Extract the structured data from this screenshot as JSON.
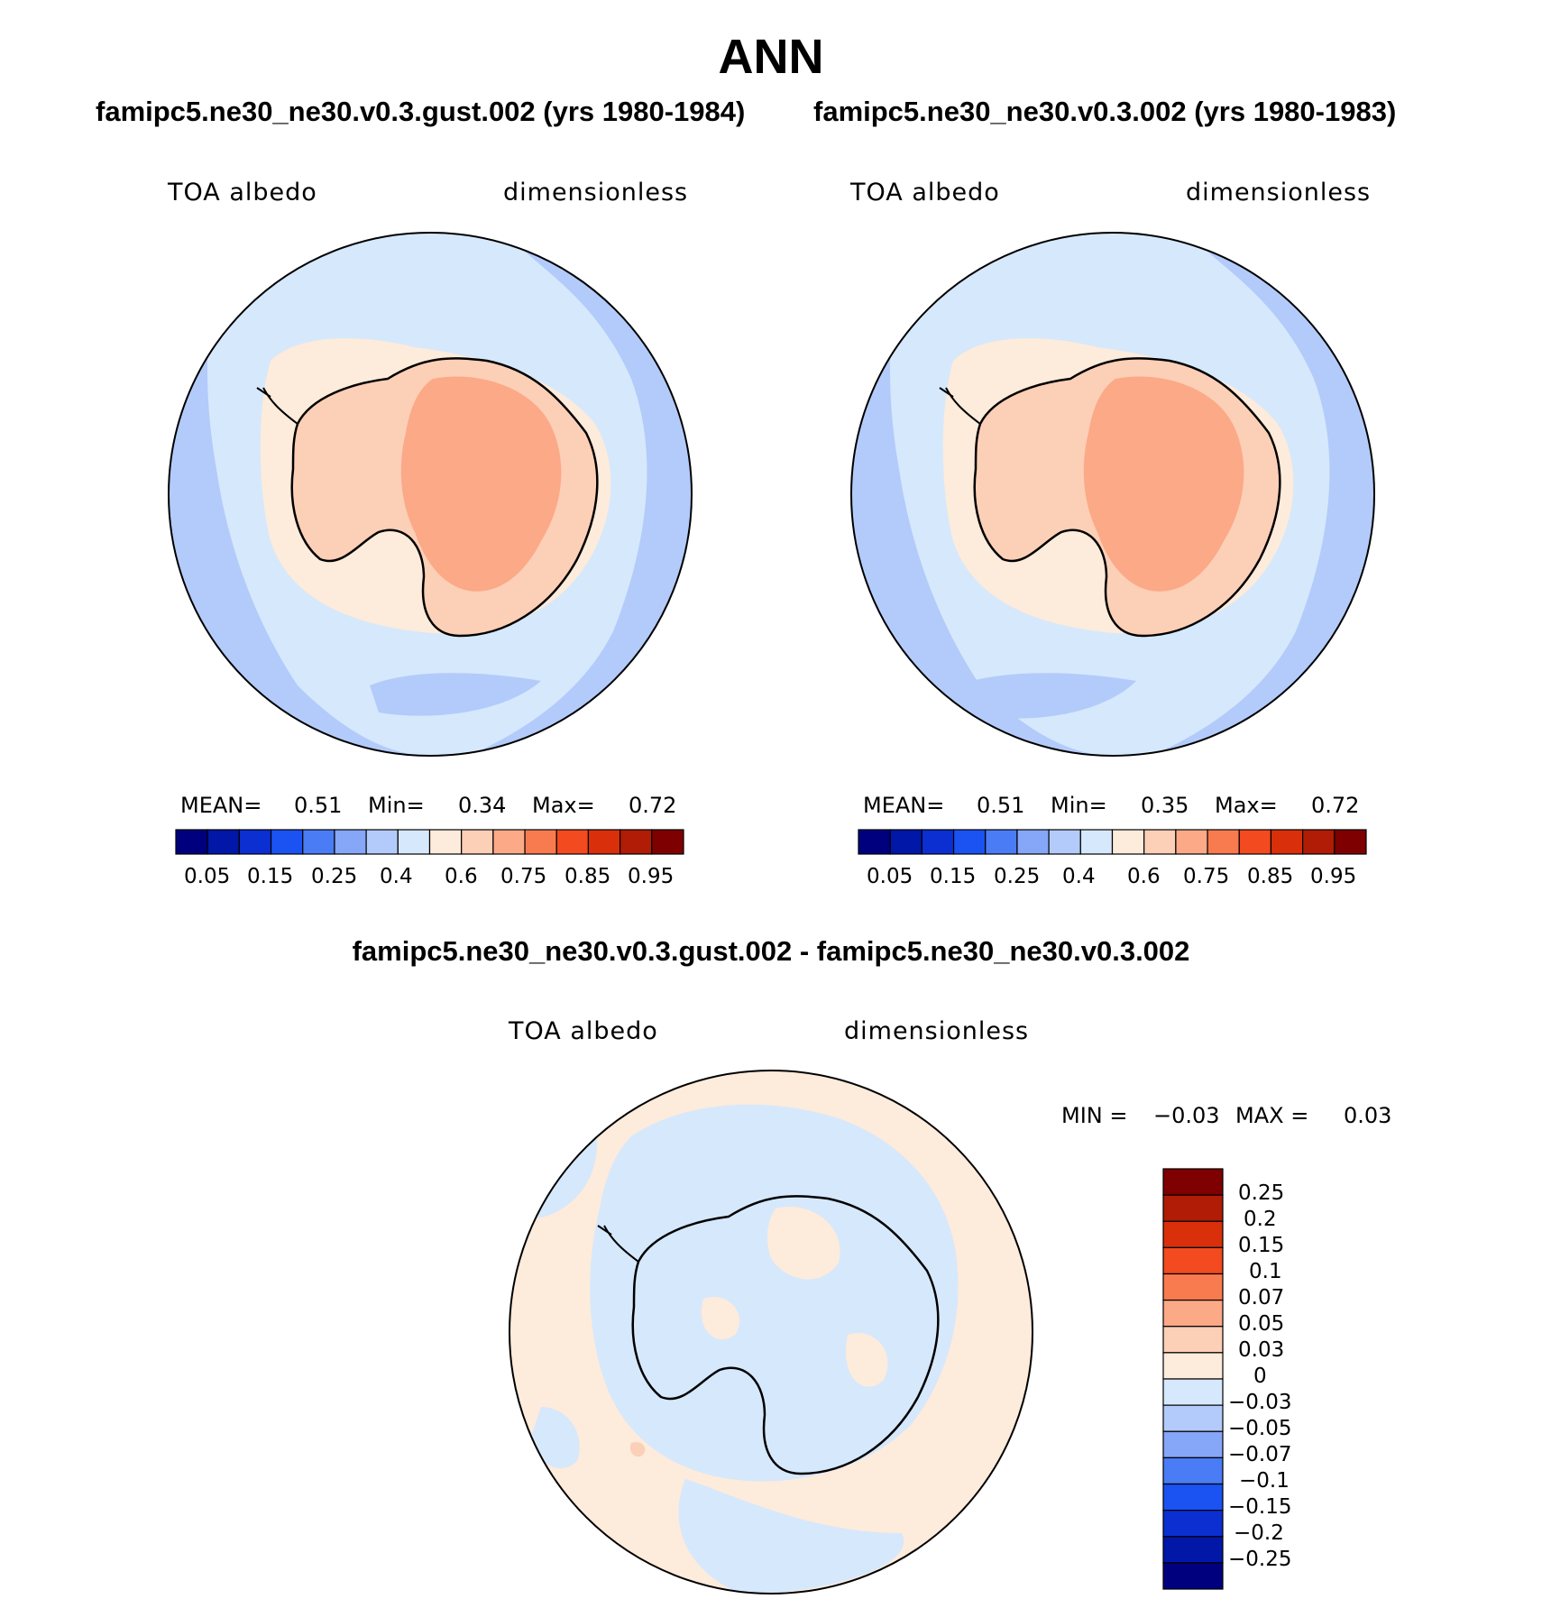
{
  "figure": {
    "season": "ANN",
    "diff_title": "famipc5.ne30_ne30.v0.3.gust.002 - famipc5.ne30_ne30.v0.3.002"
  },
  "panels": [
    {
      "title": "famipc5.ne30_ne30.v0.3.gust.002 (yrs 1980-1984)",
      "variable": "TOA albedo",
      "units": "dimensionless",
      "mean_label": "MEAN=",
      "mean": "0.51",
      "min_label": "Min=",
      "min": "0.34",
      "max_label": "Max=",
      "max": "0.72"
    },
    {
      "title": "famipc5.ne30_ne30.v0.3.002 (yrs 1980-1983)",
      "variable": "TOA albedo",
      "units": "dimensionless",
      "mean_label": "MEAN=",
      "mean": "0.51",
      "min_label": "Min=",
      "min": "0.35",
      "max_label": "Max=",
      "max": "0.72"
    }
  ],
  "diff_panel": {
    "variable": "TOA albedo",
    "units": "dimensionless",
    "min_label": "MIN =",
    "min": "−0.03",
    "max_label": "MAX =",
    "max": "0.03"
  },
  "colors": {
    "abs_scale": [
      "#00007f",
      "#0017a8",
      "#0b2fd1",
      "#1b52f2",
      "#4a7cf5",
      "#86a6f7",
      "#b3cbfa",
      "#d6e8fc",
      "#fdebdb",
      "#fccfb7",
      "#fba987",
      "#f87b4f",
      "#f34a1f",
      "#d9300b",
      "#b01c05",
      "#7f0000"
    ],
    "diff_scale": [
      "#7f0000",
      "#b01c05",
      "#d9300b",
      "#f34a1f",
      "#f87b4f",
      "#fba987",
      "#fccfb7",
      "#fdebdb",
      "#d6e8fc",
      "#b3cbfa",
      "#86a6f7",
      "#4a7cf5",
      "#1b52f2",
      "#0b2fd1",
      "#0017a8",
      "#00007f"
    ]
  },
  "colorbar_abs_ticks": [
    "0.05",
    "0.15",
    "0.25",
    "0.4",
    "0.6",
    "0.75",
    "0.85",
    "0.95"
  ],
  "colorbar_diff_ticks": [
    "0.25",
    "0.2",
    "0.15",
    "0.1",
    "0.07",
    "0.05",
    "0.03",
    "0",
    "−0.03",
    "−0.05",
    "−0.07",
    "−0.1",
    "−0.15",
    "−0.2",
    "−0.25"
  ]
}
